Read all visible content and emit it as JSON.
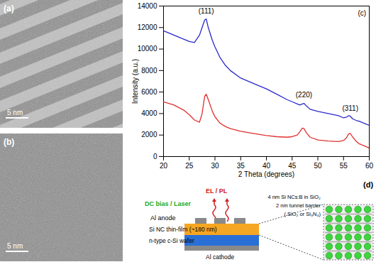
{
  "panels": {
    "a": {
      "label": "(a)",
      "scale_bar": "5 nm"
    },
    "b": {
      "label": "(b)",
      "scale_bar": "5 nm"
    }
  },
  "chart_data": {
    "type": "line",
    "x_label": "2 Theta (degrees)",
    "y_label": "Intensity (a.u.)",
    "x": [
      20,
      22,
      24,
      25,
      26,
      27,
      27.5,
      28,
      28.3,
      28.7,
      29.5,
      30,
      31,
      32,
      33,
      35,
      38,
      40,
      42,
      44,
      45,
      46,
      46.5,
      47,
      47.3,
      47.8,
      48.5,
      50,
      52,
      54,
      55,
      55.5,
      56,
      56.3,
      56.8,
      57.5,
      58,
      59,
      60
    ],
    "series": [
      {
        "color": "#2a2acc",
        "values": [
          11700,
          11300,
          10900,
          10700,
          10600,
          11300,
          12000,
          12700,
          12800,
          12000,
          10800,
          10200,
          9200,
          8500,
          8000,
          7300,
          6700,
          6300,
          5800,
          5300,
          5100,
          4900,
          4800,
          4900,
          4950,
          4700,
          4400,
          4200,
          4000,
          3800,
          3600,
          3650,
          3800,
          3750,
          3500,
          3350,
          3300,
          3100,
          2900
        ]
      },
      {
        "color": "#e03030",
        "values": [
          5100,
          4800,
          4300,
          3900,
          3400,
          3200,
          4000,
          5600,
          5800,
          5300,
          4200,
          3700,
          3100,
          2800,
          2600,
          2350,
          2100,
          1950,
          1850,
          1800,
          1850,
          2000,
          2300,
          2650,
          2600,
          2200,
          1800,
          1550,
          1450,
          1400,
          1500,
          1700,
          2100,
          2150,
          1800,
          1400,
          1200,
          1000,
          800
        ]
      }
    ],
    "xlim": [
      20,
      60
    ],
    "ylim": [
      0,
      14000
    ],
    "xticks": [
      20,
      25,
      30,
      35,
      40,
      45,
      50,
      55,
      60
    ],
    "yticks": [
      0,
      2000,
      4000,
      6000,
      8000,
      10000,
      12000,
      14000
    ],
    "grid": false,
    "annotations": [
      {
        "text": "(111)",
        "x": 28.3,
        "y": 13500
      },
      {
        "text": "(220)",
        "x": 47.3,
        "y": 5700
      },
      {
        "text": "(311)",
        "x": 56.3,
        "y": 4500
      },
      {
        "text": "(c)",
        "x": 58.6,
        "y": 13300
      }
    ]
  },
  "diagram": {
    "label": "(d)",
    "emission": "EL / PL",
    "excitation": "DC bias / Laser",
    "layers": {
      "anode": "Al anode",
      "film": "Si NC thin-film (~180 nm)",
      "wafer": "n-type c-Si wafer",
      "cathode": "Al cathode"
    },
    "inset": [
      "4 nm Si NCs:B in SiO₂",
      "2 nm tunnel barrier",
      "( SiO₂ or Si₃N₄)"
    ]
  }
}
